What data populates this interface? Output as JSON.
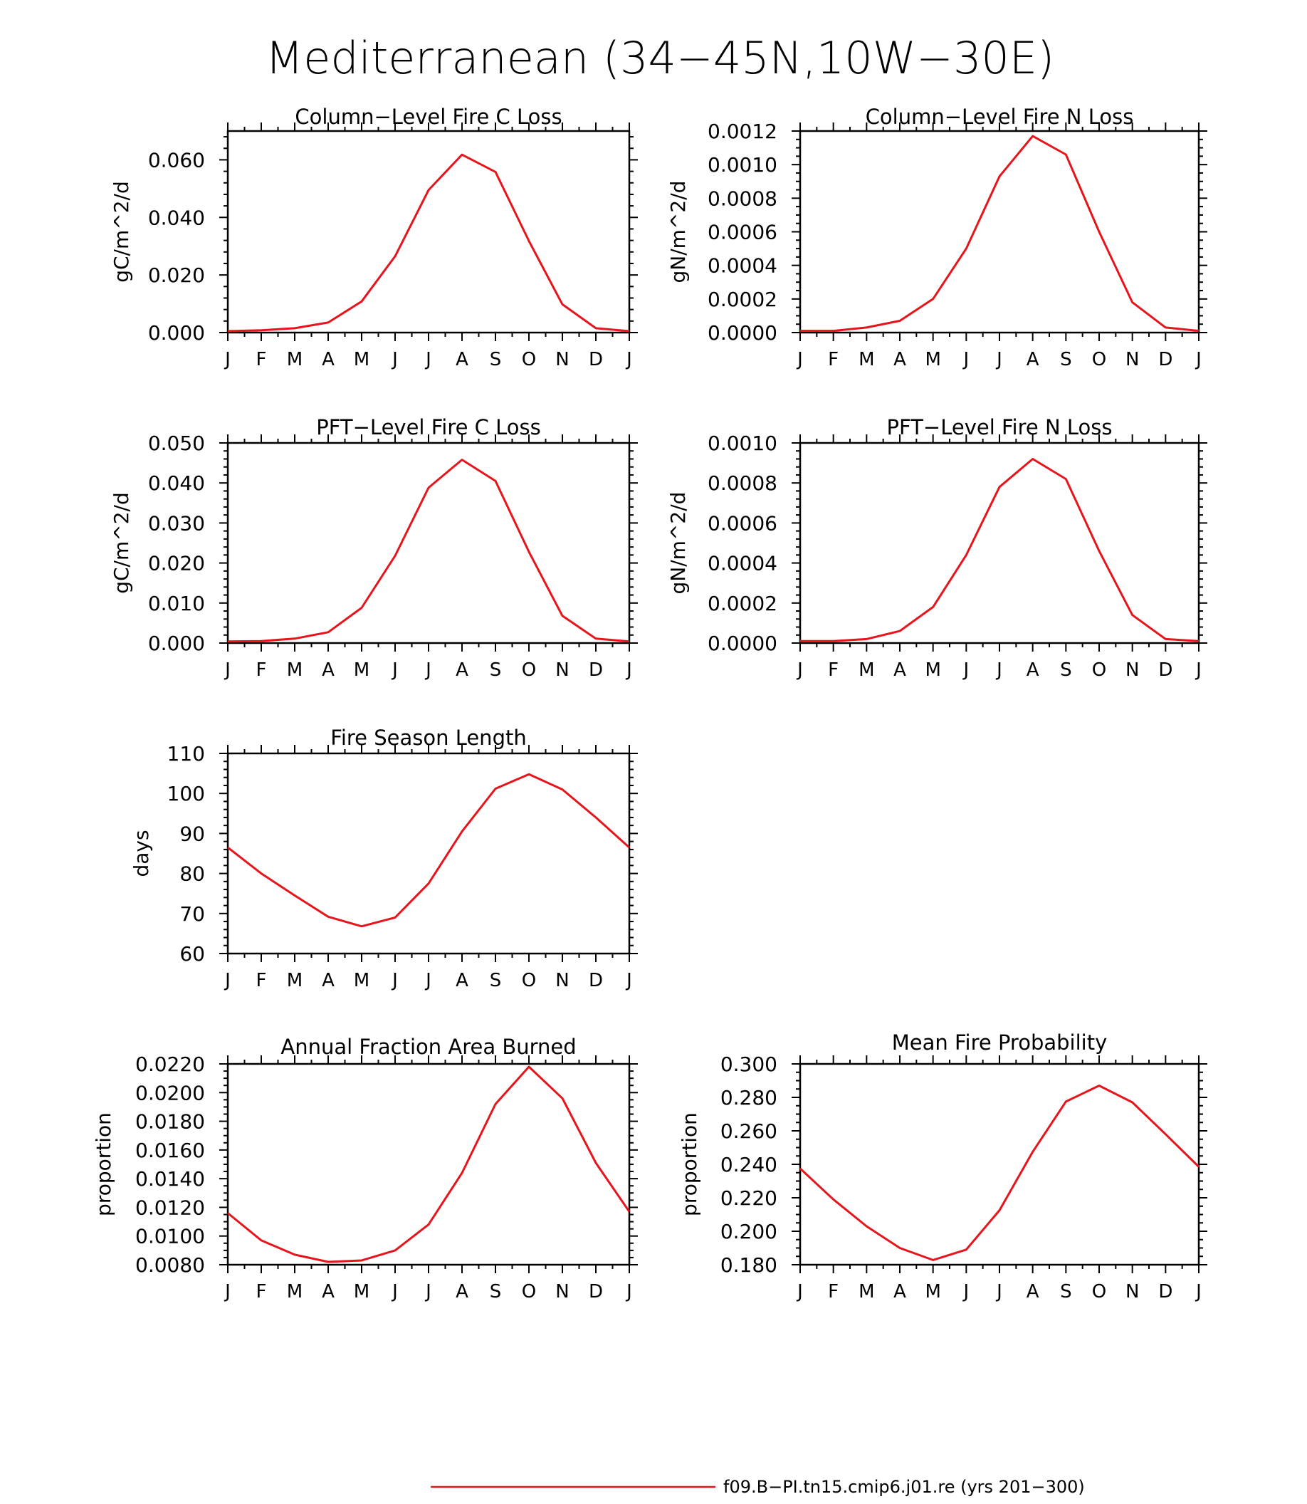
{
  "figure": {
    "title": "Mediterranean (34−45N,10W−30E)",
    "line_color": "#e8141c",
    "legend": {
      "label": "f09.B−PI.tn15.cmip6.j01.re (yrs 201−300)"
    }
  },
  "chart_data": [
    {
      "type": "line",
      "title": "Column−Level Fire C Loss",
      "ylabel": "gC/m^2/d",
      "categories": [
        "J",
        "F",
        "M",
        "A",
        "M",
        "J",
        "J",
        "A",
        "S",
        "O",
        "N",
        "D",
        "J"
      ],
      "ylim": [
        0,
        0.07
      ],
      "yticks": [
        "0.000",
        "0.020",
        "0.040",
        "0.060"
      ],
      "series": [
        {
          "values": [
            0.0005,
            0.0008,
            0.0015,
            0.0035,
            0.0108,
            0.0265,
            0.0495,
            0.0618,
            0.0558,
            0.0318,
            0.0098,
            0.0015,
            0.0005
          ]
        }
      ]
    },
    {
      "type": "line",
      "title": "Column−Level Fire N Loss",
      "ylabel": "gN/m^2/d",
      "categories": [
        "J",
        "F",
        "M",
        "A",
        "M",
        "J",
        "J",
        "A",
        "S",
        "O",
        "N",
        "D",
        "J"
      ],
      "ylim": [
        0,
        0.0012
      ],
      "yticks": [
        "0.0000",
        "0.0002",
        "0.0004",
        "0.0006",
        "0.0008",
        "0.0010",
        "0.0012"
      ],
      "series": [
        {
          "values": [
            1e-05,
            1e-05,
            3e-05,
            7e-05,
            0.0002,
            0.0005,
            0.00093,
            0.00117,
            0.00106,
            0.0006,
            0.00018,
            3e-05,
            1e-05
          ]
        }
      ]
    },
    {
      "type": "line",
      "title": "PFT−Level Fire C Loss",
      "ylabel": "gC/m^2/d",
      "categories": [
        "J",
        "F",
        "M",
        "A",
        "M",
        "J",
        "J",
        "A",
        "S",
        "O",
        "N",
        "D",
        "J"
      ],
      "ylim": [
        0,
        0.05
      ],
      "yticks": [
        "0.000",
        "0.010",
        "0.020",
        "0.030",
        "0.040",
        "0.050"
      ],
      "series": [
        {
          "values": [
            0.0004,
            0.0005,
            0.0011,
            0.0027,
            0.0088,
            0.0218,
            0.0388,
            0.0458,
            0.0405,
            0.0228,
            0.0068,
            0.0011,
            0.0004
          ]
        }
      ]
    },
    {
      "type": "line",
      "title": "PFT−Level Fire N Loss",
      "ylabel": "gN/m^2/d",
      "categories": [
        "J",
        "F",
        "M",
        "A",
        "M",
        "J",
        "J",
        "A",
        "S",
        "O",
        "N",
        "D",
        "J"
      ],
      "ylim": [
        0,
        0.001
      ],
      "yticks": [
        "0.0000",
        "0.0002",
        "0.0004",
        "0.0006",
        "0.0008",
        "0.0010"
      ],
      "series": [
        {
          "values": [
            1e-05,
            1e-05,
            2e-05,
            6e-05,
            0.00018,
            0.00044,
            0.00078,
            0.00092,
            0.00082,
            0.00046,
            0.00014,
            2e-05,
            1e-05
          ]
        }
      ]
    },
    {
      "type": "line",
      "title": "Fire Season Length",
      "ylabel": "days",
      "categories": [
        "J",
        "F",
        "M",
        "A",
        "M",
        "J",
        "J",
        "A",
        "S",
        "O",
        "N",
        "D",
        "J"
      ],
      "ylim": [
        60,
        110
      ],
      "yticks": [
        "60",
        "70",
        "80",
        "90",
        "100",
        "110"
      ],
      "series": [
        {
          "values": [
            86.5,
            80.0,
            74.5,
            69.2,
            66.8,
            69.0,
            77.5,
            90.5,
            101.2,
            104.8,
            101.0,
            94.0,
            86.5
          ]
        }
      ]
    },
    {
      "type": "line",
      "title": "Annual Fraction Area Burned",
      "ylabel": "proportion",
      "categories": [
        "J",
        "F",
        "M",
        "A",
        "M",
        "J",
        "J",
        "A",
        "S",
        "O",
        "N",
        "D",
        "J"
      ],
      "ylim": [
        0.008,
        0.022
      ],
      "yticks": [
        "0.0080",
        "0.0100",
        "0.0120",
        "0.0140",
        "0.0160",
        "0.0180",
        "0.0200",
        "0.0220"
      ],
      "series": [
        {
          "values": [
            0.0116,
            0.0097,
            0.0087,
            0.0082,
            0.0083,
            0.009,
            0.0108,
            0.0144,
            0.0192,
            0.0218,
            0.0196,
            0.0151,
            0.0117
          ]
        }
      ]
    },
    {
      "type": "line",
      "title": "Mean Fire Probability",
      "ylabel": "proportion",
      "categories": [
        "J",
        "F",
        "M",
        "A",
        "M",
        "J",
        "J",
        "A",
        "S",
        "O",
        "N",
        "D",
        "J"
      ],
      "ylim": [
        0.18,
        0.3
      ],
      "yticks": [
        "0.180",
        "0.200",
        "0.220",
        "0.240",
        "0.260",
        "0.280",
        "0.300"
      ],
      "series": [
        {
          "values": [
            0.2375,
            0.219,
            0.203,
            0.19,
            0.1828,
            0.189,
            0.2125,
            0.2475,
            0.2775,
            0.287,
            0.277,
            0.258,
            0.2385
          ]
        }
      ]
    }
  ]
}
